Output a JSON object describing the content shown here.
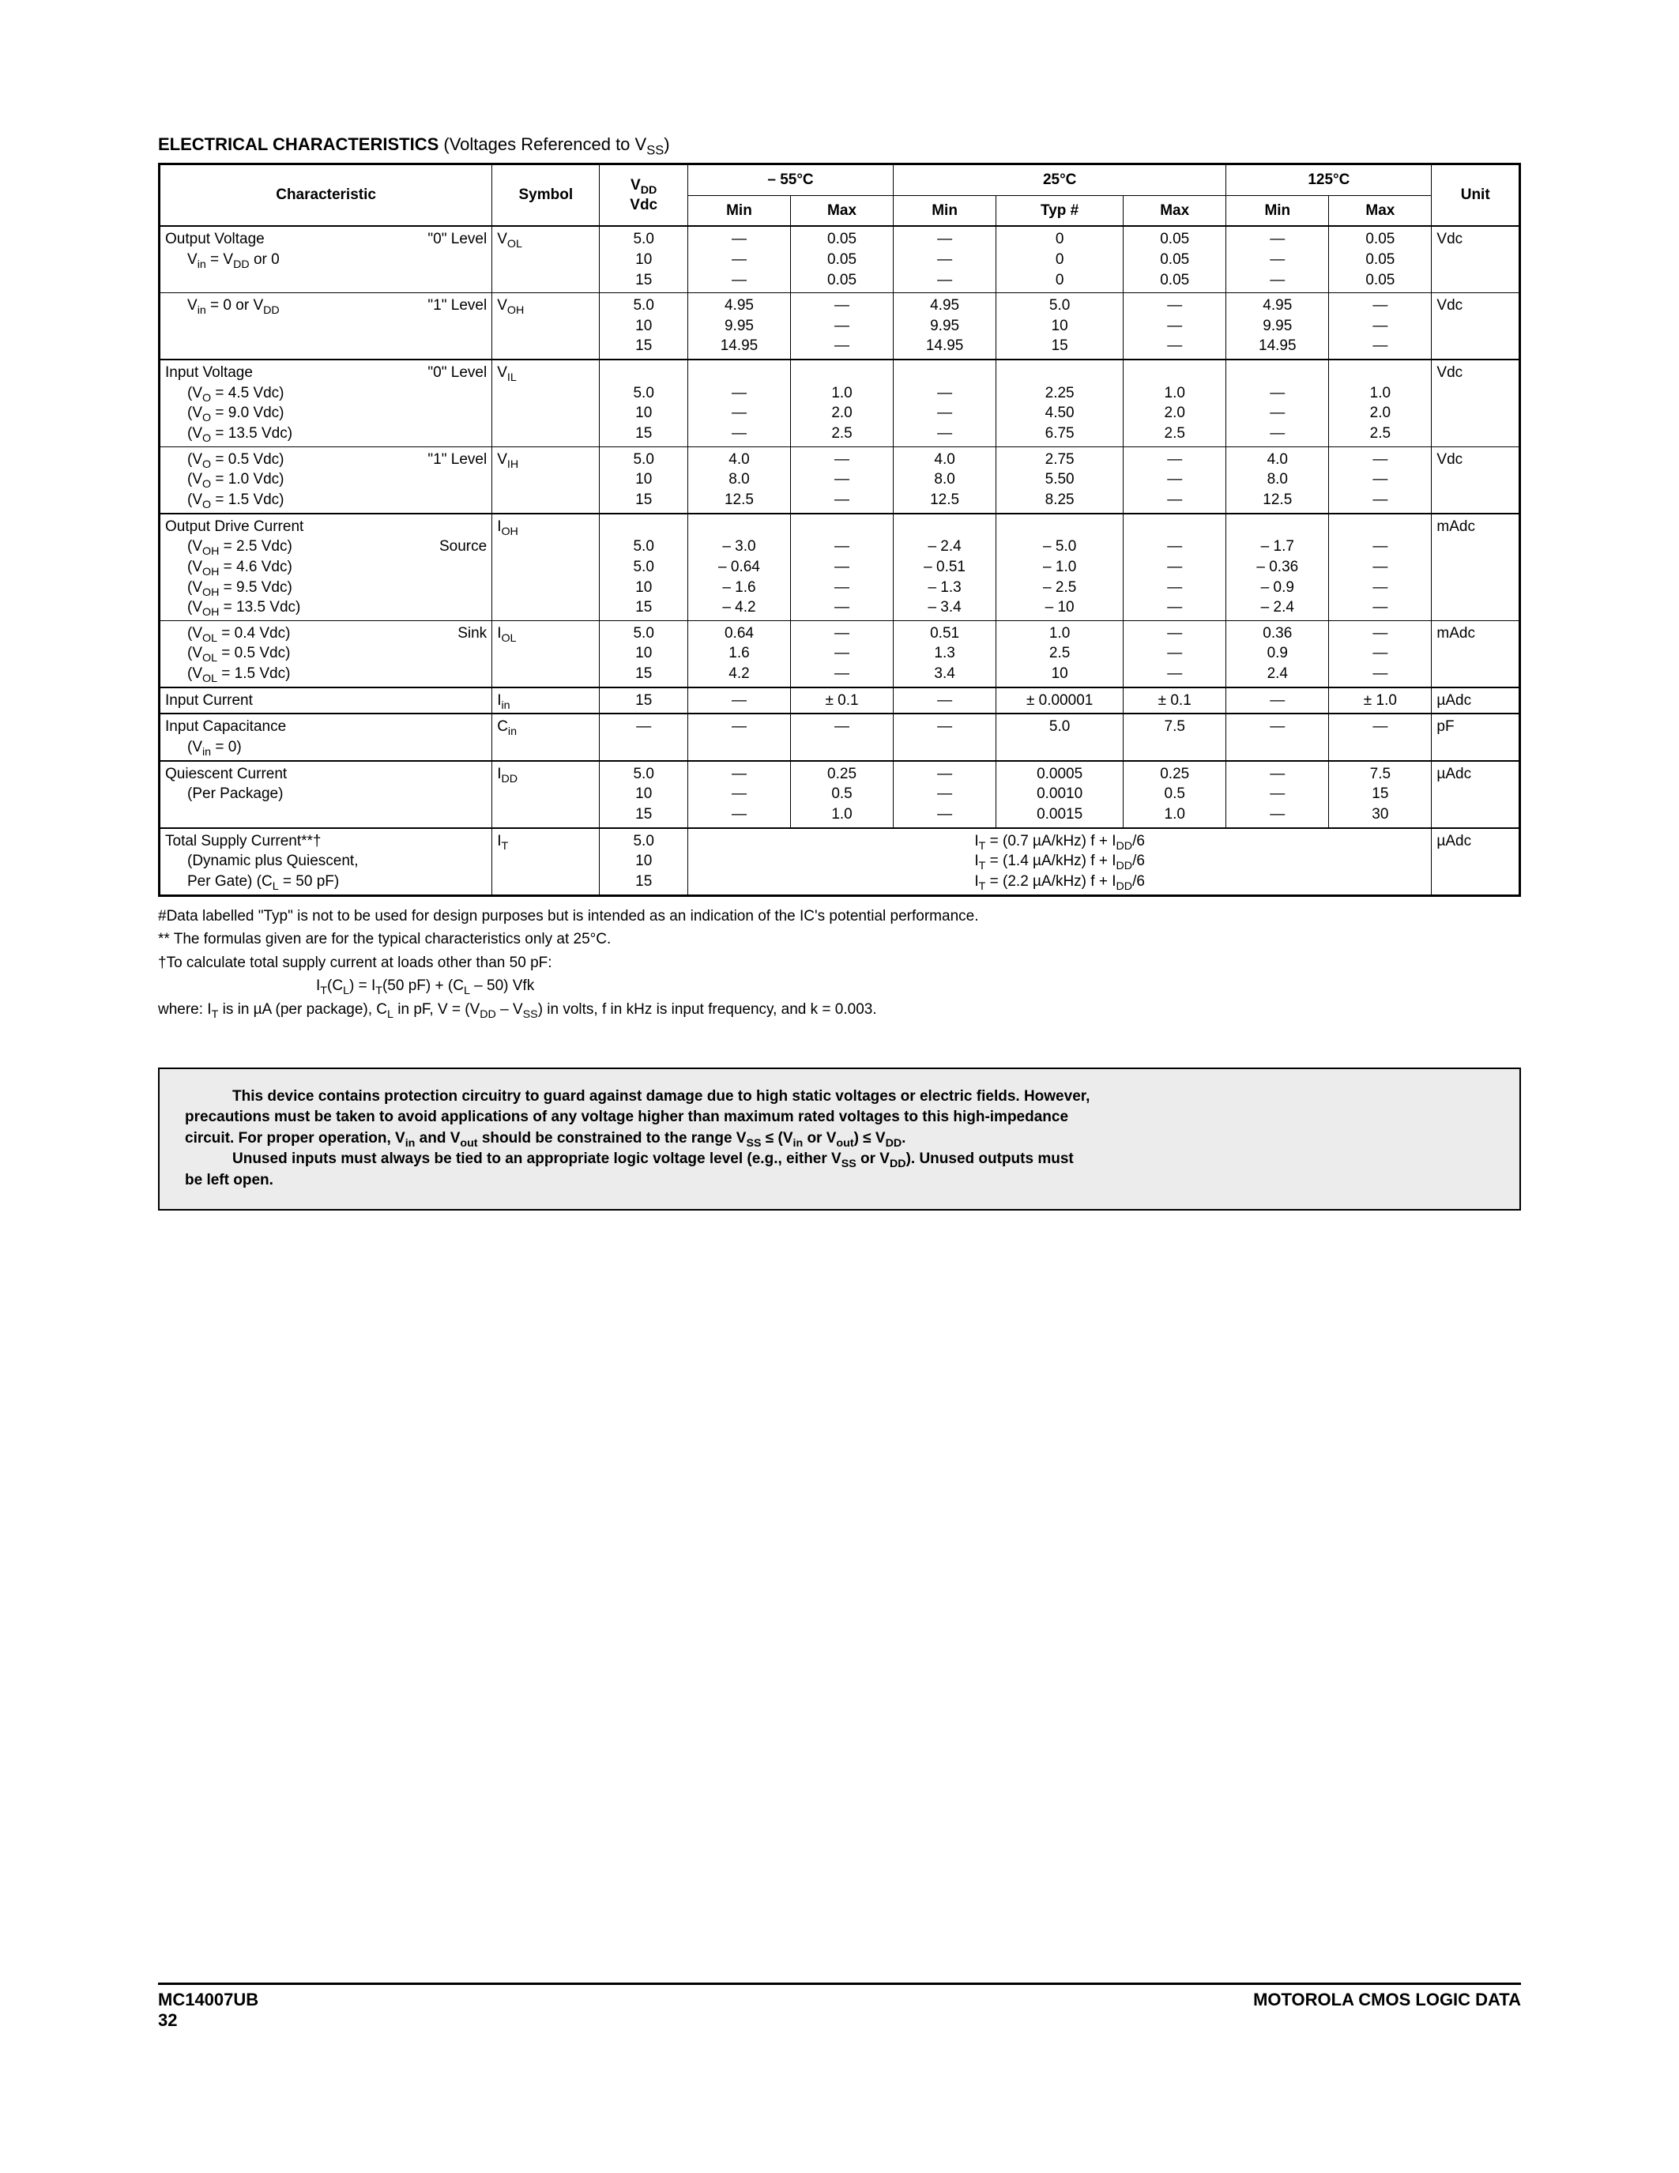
{
  "title": {
    "bold": "ELECTRICAL CHARACTERISTICS",
    "rest_pre": " (Voltages Referenced to V",
    "rest_sub": "SS",
    "rest_post": ")"
  },
  "headers": {
    "characteristic": "Characteristic",
    "symbol": "Symbol",
    "vdd_top": "V",
    "vdd_top_sub": "DD",
    "vdd_bot": "Vdc",
    "temp_n55": "– 55°C",
    "temp_25": "25°C",
    "temp_125": "125°C",
    "min": "Min",
    "max": "Max",
    "typ": "Typ #",
    "unit": "Unit"
  },
  "rows": {
    "vol": {
      "label_main": "Output Voltage",
      "label_level": "\"0\" Level",
      "label_sub1_pre": "V",
      "label_sub1_sub": "in",
      "label_sub1_post": " =  V",
      "label_sub1_sub2": "DD",
      "label_sub1_end": " or 0",
      "symbol_pre": "V",
      "symbol_sub": "OL",
      "vdd": [
        "5.0",
        "10",
        "15"
      ],
      "n55_min": [
        "—",
        "—",
        "—"
      ],
      "n55_max": [
        "0.05",
        "0.05",
        "0.05"
      ],
      "t25_min": [
        "—",
        "—",
        "—"
      ],
      "t25_typ": [
        "0",
        "0",
        "0"
      ],
      "t25_max": [
        "0.05",
        "0.05",
        "0.05"
      ],
      "t125_min": [
        "—",
        "—",
        "—"
      ],
      "t125_max": [
        "0.05",
        "0.05",
        "0.05"
      ],
      "unit": "Vdc"
    },
    "voh": {
      "label_sub1_pre": "V",
      "label_sub1_sub": "in",
      "label_sub1_post": " = 0 or V",
      "label_sub1_sub2": "DD",
      "label_level": "\"1\" Level",
      "symbol_pre": "V",
      "symbol_sub": "OH",
      "vdd": [
        "5.0",
        "10",
        "15"
      ],
      "n55_min": [
        "4.95",
        "9.95",
        "14.95"
      ],
      "n55_max": [
        "—",
        "—",
        "—"
      ],
      "t25_min": [
        "4.95",
        "9.95",
        "14.95"
      ],
      "t25_typ": [
        "5.0",
        "10",
        "15"
      ],
      "t25_max": [
        "—",
        "—",
        "—"
      ],
      "t125_min": [
        "4.95",
        "9.95",
        "14.95"
      ],
      "t125_max": [
        "—",
        "—",
        "—"
      ],
      "unit": "Vdc"
    },
    "vil": {
      "label_main": "Input Voltage",
      "label_level": "\"0\" Level",
      "cond": [
        "(V",
        "O",
        " = 4.5 Vdc)",
        "(V",
        "O",
        " = 9.0 Vdc)",
        "(V",
        "O",
        " = 13.5 Vdc)"
      ],
      "symbol_pre": "V",
      "symbol_sub": "IL",
      "vdd": [
        "5.0",
        "10",
        "15"
      ],
      "n55_min": [
        "—",
        "—",
        "—"
      ],
      "n55_max": [
        "1.0",
        "2.0",
        "2.5"
      ],
      "t25_min": [
        "—",
        "—",
        "—"
      ],
      "t25_typ": [
        "2.25",
        "4.50",
        "6.75"
      ],
      "t25_max": [
        "1.0",
        "2.0",
        "2.5"
      ],
      "t125_min": [
        "—",
        "—",
        "—"
      ],
      "t125_max": [
        "1.0",
        "2.0",
        "2.5"
      ],
      "unit": "Vdc"
    },
    "vih": {
      "cond": [
        "(V",
        "O",
        " = 0.5 Vdc)",
        "(V",
        "O",
        " = 1.0 Vdc)",
        "(V",
        "O",
        " = 1.5 Vdc)"
      ],
      "label_level": "\"1\" Level",
      "symbol_pre": "V",
      "symbol_sub": "IH",
      "vdd": [
        "5.0",
        "10",
        "15"
      ],
      "n55_min": [
        "4.0",
        "8.0",
        "12.5"
      ],
      "n55_max": [
        "—",
        "—",
        "—"
      ],
      "t25_min": [
        "4.0",
        "8.0",
        "12.5"
      ],
      "t25_typ": [
        "2.75",
        "5.50",
        "8.25"
      ],
      "t25_max": [
        "—",
        "—",
        "—"
      ],
      "t125_min": [
        "4.0",
        "8.0",
        "12.5"
      ],
      "t125_max": [
        "—",
        "—",
        "—"
      ],
      "unit": "Vdc"
    },
    "ioh": {
      "label_main": "Output Drive Current",
      "label_level": "Source",
      "cond": [
        "(V",
        "OH",
        " = 2.5 Vdc)",
        "(V",
        "OH",
        " = 4.6 Vdc)",
        "(V",
        "OH",
        " = 9.5 Vdc)",
        "(V",
        "OH",
        " = 13.5 Vdc)"
      ],
      "symbol_pre": "I",
      "symbol_sub": "OH",
      "vdd": [
        "5.0",
        "5.0",
        "10",
        "15"
      ],
      "n55_min": [
        "– 3.0",
        "– 0.64",
        "– 1.6",
        "– 4.2"
      ],
      "n55_max": [
        "—",
        "—",
        "—",
        "—"
      ],
      "t25_min": [
        "– 2.4",
        "– 0.51",
        "– 1.3",
        "– 3.4"
      ],
      "t25_typ": [
        "– 5.0",
        "– 1.0",
        "– 2.5",
        "– 10"
      ],
      "t25_max": [
        "—",
        "—",
        "—",
        "—"
      ],
      "t125_min": [
        "– 1.7",
        "– 0.36",
        "– 0.9",
        "– 2.4"
      ],
      "t125_max": [
        "—",
        "—",
        "—",
        "—"
      ],
      "unit": "mAdc"
    },
    "iol": {
      "cond": [
        "(V",
        "OL",
        " = 0.4 Vdc)",
        "(V",
        "OL",
        " = 0.5 Vdc)",
        "(V",
        "OL",
        " = 1.5 Vdc)"
      ],
      "label_level": "Sink",
      "symbol_pre": "I",
      "symbol_sub": "OL",
      "vdd": [
        "5.0",
        "10",
        "15"
      ],
      "n55_min": [
        "0.64",
        "1.6",
        "4.2"
      ],
      "n55_max": [
        "—",
        "—",
        "—"
      ],
      "t25_min": [
        "0.51",
        "1.3",
        "3.4"
      ],
      "t25_typ": [
        "1.0",
        "2.5",
        "10"
      ],
      "t25_max": [
        "—",
        "—",
        "—"
      ],
      "t125_min": [
        "0.36",
        "0.9",
        "2.4"
      ],
      "t125_max": [
        "—",
        "—",
        "—"
      ],
      "unit": "mAdc"
    },
    "iin": {
      "label_main": "Input Current",
      "symbol_pre": "I",
      "symbol_sub": "in",
      "vdd": "15",
      "n55_min": "—",
      "n55_max": "± 0.1",
      "t25_min": "—",
      "t25_typ": "± 0.00001",
      "t25_max": "± 0.1",
      "t125_min": "—",
      "t125_max": "± 1.0",
      "unit": "µAdc"
    },
    "cin": {
      "label_main": "Input Capacitance",
      "label_sub": "(V",
      "label_sub_sub": "in",
      "label_sub_post": " = 0)",
      "symbol_pre": "C",
      "symbol_sub": "in",
      "vdd": "—",
      "n55_min": "—",
      "n55_max": "—",
      "t25_min": "—",
      "t25_typ": "5.0",
      "t25_max": "7.5",
      "t125_min": "—",
      "t125_max": "—",
      "unit": "pF"
    },
    "idd": {
      "label_main": "Quiescent Current",
      "label_sub": "(Per Package)",
      "symbol_pre": "I",
      "symbol_sub": "DD",
      "vdd": [
        "5.0",
        "10",
        "15"
      ],
      "n55_min": [
        "—",
        "—",
        "—"
      ],
      "n55_max": [
        "0.25",
        "0.5",
        "1.0"
      ],
      "t25_min": [
        "—",
        "—",
        "—"
      ],
      "t25_typ": [
        "0.0005",
        "0.0010",
        "0.0015"
      ],
      "t25_max": [
        "0.25",
        "0.5",
        "1.0"
      ],
      "t125_min": [
        "—",
        "—",
        "—"
      ],
      "t125_max": [
        "7.5",
        "15",
        "30"
      ],
      "unit": "µAdc"
    },
    "it": {
      "label_main": "Total Supply Current**†",
      "label_sub1": "(Dynamic plus Quiescent,",
      "label_sub2_pre": "Per Gate) (C",
      "label_sub2_sub": "L",
      "label_sub2_post": " = 50 pF)",
      "symbol_pre": "I",
      "symbol_sub": "T",
      "vdd": [
        "5.0",
        "10",
        "15"
      ],
      "formula1_pre": "I",
      "formula1_sub": "T",
      "formula1_mid": " = (0.7 µA/kHz) f + I",
      "formula1_sub2": "DD",
      "formula1_post": "/6",
      "formula2_pre": "I",
      "formula2_sub": "T",
      "formula2_mid": " = (1.4 µA/kHz) f + I",
      "formula2_sub2": "DD",
      "formula2_post": "/6",
      "formula3_pre": "I",
      "formula3_sub": "T",
      "formula3_mid": " = (2.2 µA/kHz) f + I",
      "formula3_sub2": "DD",
      "formula3_post": "/6",
      "unit": "µAdc"
    }
  },
  "notes": {
    "n1": "#Data labelled \"Typ\" is not to be used for design purposes but is intended as an indication of the IC's potential performance.",
    "n2": "** The formulas given are for the typical characteristics only at 25°C.",
    "n3": "†To calculate total supply current at loads other than 50 pF:",
    "formula_pre": "I",
    "formula_sub1": "T",
    "formula_mid1": "(C",
    "formula_sub2": "L",
    "formula_mid2": ") = I",
    "formula_sub3": "T",
    "formula_mid3": "(50 pF) + (C",
    "formula_sub4": "L",
    "formula_post": " – 50) Vfk",
    "n4_pre": "where: I",
    "n4_sub1": "T",
    "n4_mid1": " is in µA (per package), C",
    "n4_sub2": "L",
    "n4_mid2": " in pF, V = (V",
    "n4_sub3": "DD",
    "n4_mid3": " – V",
    "n4_sub4": "SS",
    "n4_post": ") in volts, f in kHz is input frequency, and k = 0.003."
  },
  "caution": {
    "l1_pre": "This device contains protection circuitry to guard against damage due to high static voltages or electric fields. However,",
    "l2": "precautions must be taken to avoid applications of any voltage higher than maximum rated voltages to this high-impedance",
    "l3_pre": "circuit. For proper operation, V",
    "l3_s1": "in",
    "l3_m1": " and V",
    "l3_s2": "out",
    "l3_m2": " should be constrained to the range V",
    "l3_s3": "SS",
    "l3_m3": " ≤ (V",
    "l3_s4": "in",
    "l3_m4": " or V",
    "l3_s5": "out",
    "l3_m5": ") ≤ V",
    "l3_s6": "DD",
    "l3_post": ".",
    "l4_pre": "Unused inputs must always be tied to an appropriate logic voltage level (e.g., either V",
    "l4_s1": "SS",
    "l4_m1": " or V",
    "l4_s2": "DD",
    "l4_m2": "). Unused outputs must",
    "l5": "be left open."
  },
  "footer": {
    "part": "MC14007UB",
    "page": "32",
    "right": "MOTOROLA CMOS LOGIC DATA"
  }
}
